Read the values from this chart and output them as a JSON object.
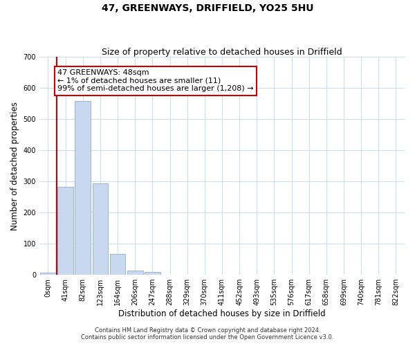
{
  "title": "47, GREENWAYS, DRIFFIELD, YO25 5HU",
  "subtitle": "Size of property relative to detached houses in Driffield",
  "xlabel": "Distribution of detached houses by size in Driffield",
  "ylabel": "Number of detached properties",
  "bar_labels": [
    "0sqm",
    "41sqm",
    "82sqm",
    "123sqm",
    "164sqm",
    "206sqm",
    "247sqm",
    "288sqm",
    "329sqm",
    "370sqm",
    "411sqm",
    "452sqm",
    "493sqm",
    "535sqm",
    "576sqm",
    "617sqm",
    "658sqm",
    "699sqm",
    "740sqm",
    "781sqm",
    "822sqm"
  ],
  "bar_values": [
    8,
    283,
    557,
    293,
    68,
    13,
    10,
    0,
    0,
    0,
    0,
    0,
    0,
    0,
    0,
    0,
    0,
    0,
    0,
    0,
    0
  ],
  "bar_color": "#c8d8ee",
  "bar_edge_color": "#9ab4d4",
  "grid_color": "#cddcee",
  "vline_color": "#cc0000",
  "annotation_text": "47 GREENWAYS: 48sqm\n← 1% of detached houses are smaller (11)\n99% of semi-detached houses are larger (1,208) →",
  "annotation_box_color": "#ffffff",
  "annotation_box_edge": "#cc0000",
  "ylim": [
    0,
    700
  ],
  "yticks": [
    0,
    100,
    200,
    300,
    400,
    500,
    600,
    700
  ],
  "footer1": "Contains HM Land Registry data © Crown copyright and database right 2024.",
  "footer2": "Contains public sector information licensed under the Open Government Licence v3.0.",
  "title_fontsize": 10,
  "subtitle_fontsize": 9,
  "tick_fontsize": 7,
  "label_fontsize": 8.5,
  "footer_fontsize": 6,
  "annotation_fontsize": 8
}
